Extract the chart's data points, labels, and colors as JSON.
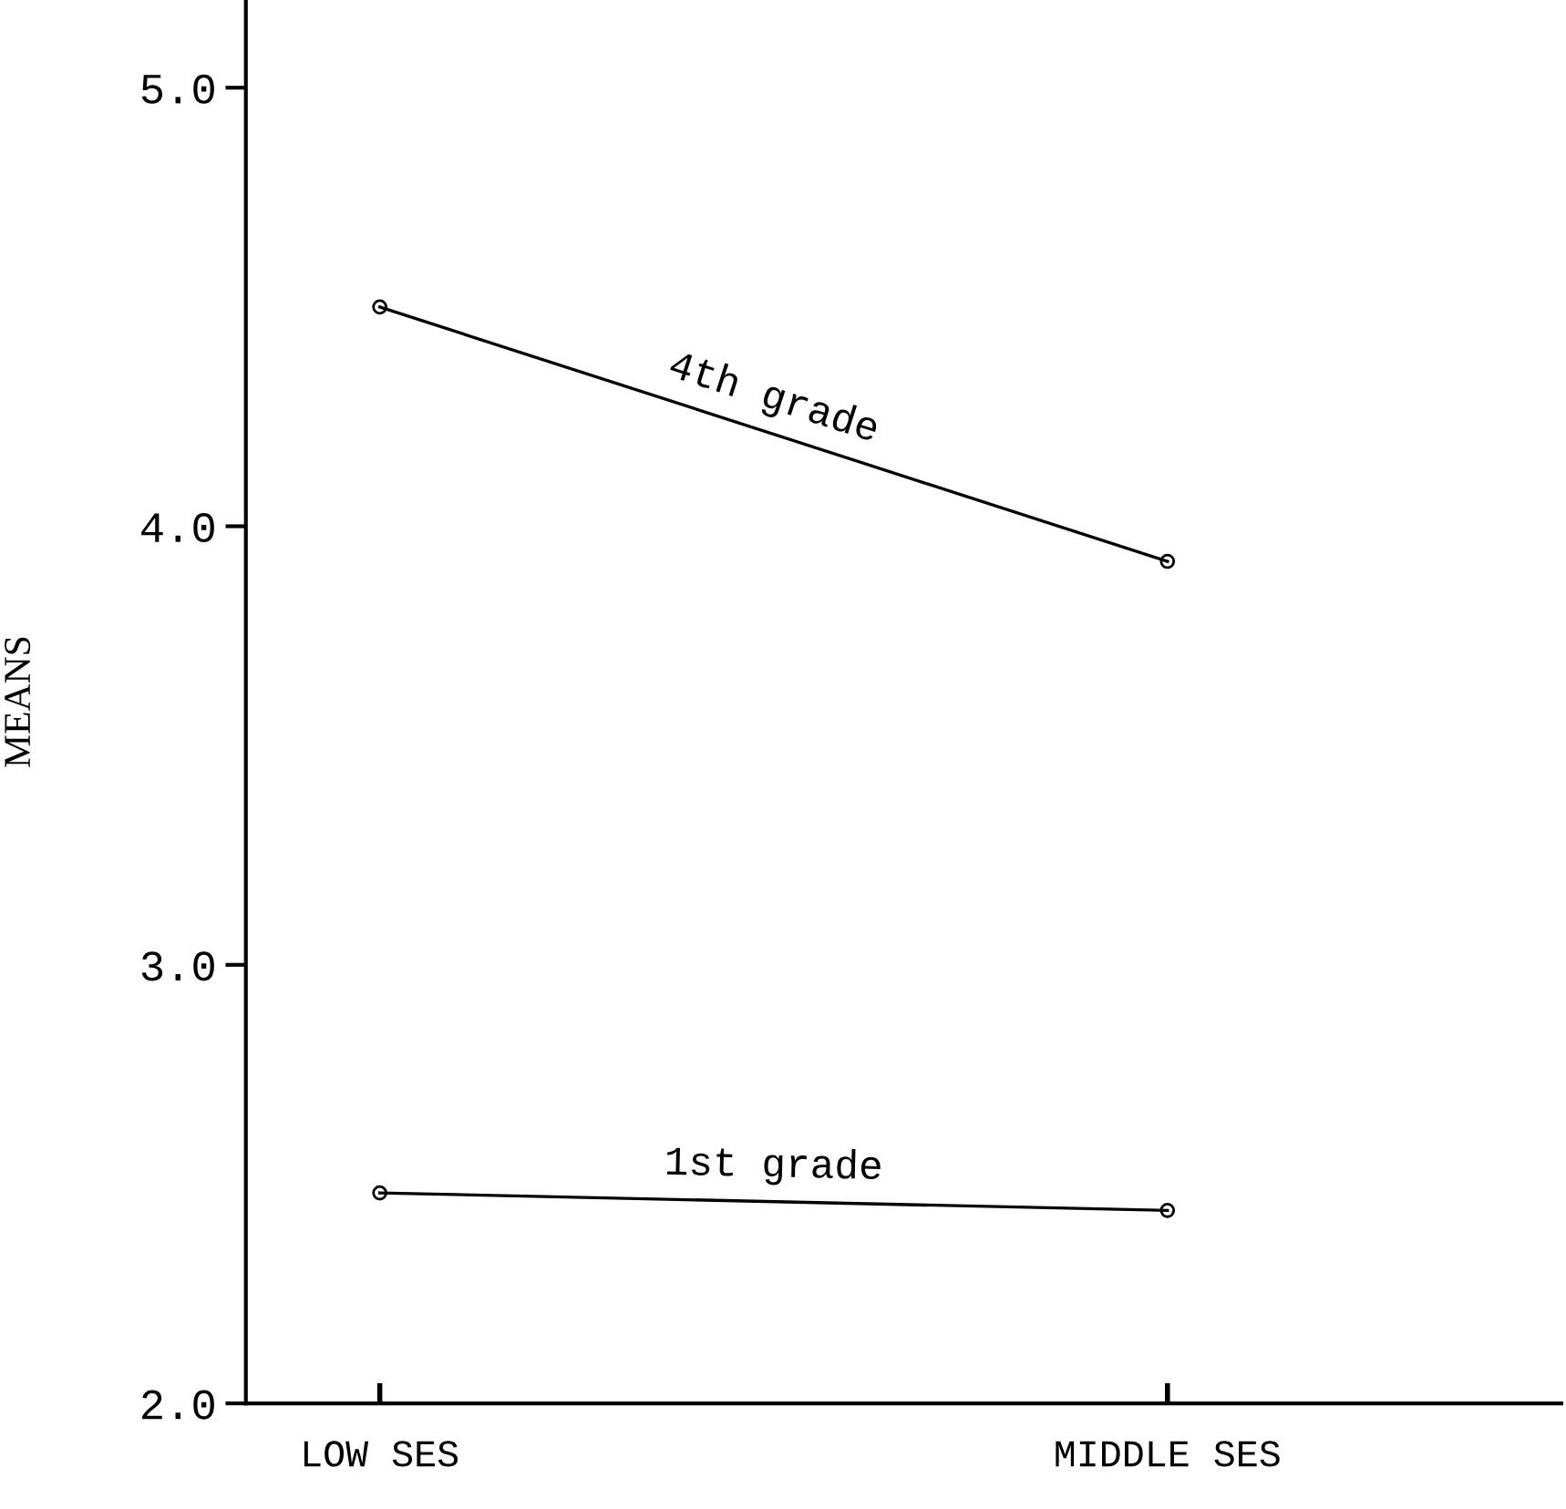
{
  "chart_data": {
    "type": "line",
    "ylabel": "MEANS",
    "categories": [
      "LOW SES",
      "MIDDLE SES"
    ],
    "series": [
      {
        "name": "4th grade",
        "color": "#000000",
        "values": [
          4.5,
          3.92
        ]
      },
      {
        "name": "1st grade",
        "color": "#000000",
        "values": [
          2.48,
          2.44
        ]
      }
    ],
    "ylim": [
      2.0,
      5.2
    ],
    "yticks": [
      {
        "value": 2.0,
        "label": "2.0"
      },
      {
        "value": 3.0,
        "label": "3.0"
      },
      {
        "value": 4.0,
        "label": "4.0"
      },
      {
        "value": 5.0,
        "label": "5.0"
      }
    ],
    "marker": "circle",
    "line_style": "solid",
    "grid": false,
    "legend": false
  }
}
